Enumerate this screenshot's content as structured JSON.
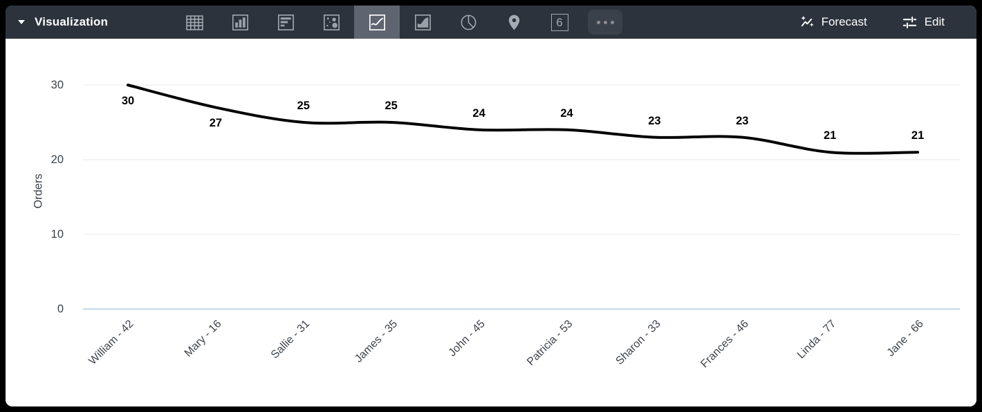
{
  "toolbar": {
    "title": "Visualization",
    "single_value_glyph": "6",
    "forecast_label": "Forecast",
    "edit_label": "Edit",
    "selected_tab": "line",
    "tabs": [
      "table",
      "column",
      "bar",
      "scatter",
      "line",
      "area",
      "pie",
      "map",
      "single-value",
      "more"
    ],
    "colors": {
      "bg": "#2d333d",
      "selected_bg": "#5f6570",
      "icon": "#a6abb3",
      "text": "#ffffff"
    }
  },
  "chart_data": {
    "type": "line",
    "categories": [
      "William - 42",
      "Mary - 16",
      "Sallie - 31",
      "James - 35",
      "John - 45",
      "Patricia - 53",
      "Sharon - 33",
      "Frances - 46",
      "Linda - 77",
      "Jane - 66"
    ],
    "values": [
      30,
      27,
      25,
      25,
      24,
      24,
      23,
      23,
      21,
      21
    ],
    "ylabel": "Orders",
    "yticks": [
      0,
      10,
      20,
      30
    ],
    "ylim": [
      0,
      30
    ],
    "grid": true,
    "data_labels": true,
    "labels_below_indices": [
      0,
      1
    ],
    "x_label_rotation": -45,
    "line_color": "#000000",
    "grid_color": "#e7e7e7",
    "zero_line_color": "#c7d5e8",
    "axis_text_color": "#3d434a"
  }
}
